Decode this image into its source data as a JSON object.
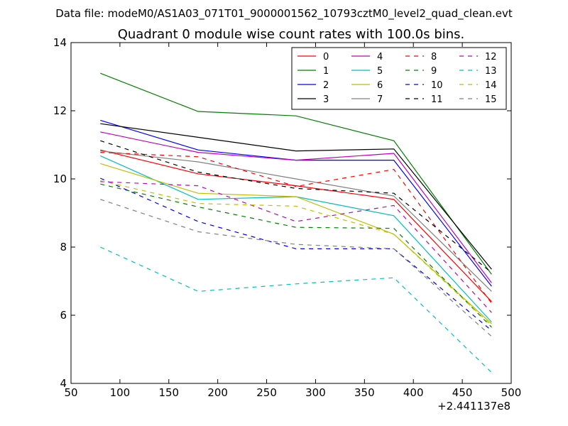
{
  "chart_data": {
    "type": "line",
    "suptitle": "Data file: modeM0/AS1A03_071T01_9000001562_10793cztM0_level2_quad_clean.evt",
    "title": "Quadrant 0 module wise count rates with 100.0s bins.",
    "xlabel": "",
    "ylabel": "",
    "xlim": [
      50,
      500
    ],
    "ylim": [
      4,
      14
    ],
    "x_offset_label": "+2.441137e8",
    "x_ticks": [
      50,
      100,
      150,
      200,
      250,
      300,
      350,
      400,
      450,
      500
    ],
    "y_ticks": [
      4,
      6,
      8,
      10,
      12,
      14
    ],
    "x_tick_labels": [
      "50",
      "100",
      "150",
      "200",
      "250",
      "300",
      "350",
      "400",
      "450",
      "500"
    ],
    "y_tick_labels": [
      "4",
      "6",
      "8",
      "10",
      "12",
      "14"
    ],
    "x": [
      80,
      180,
      280,
      380,
      480
    ],
    "legend_position": "upper-right",
    "series": [
      {
        "name": "0",
        "color": "#ff0000",
        "style": "solid",
        "values": [
          10.85,
          10.15,
          9.8,
          9.4,
          6.4
        ]
      },
      {
        "name": "1",
        "color": "#008000",
        "style": "solid",
        "values": [
          13.1,
          11.98,
          11.85,
          11.12,
          7.2
        ]
      },
      {
        "name": "2",
        "color": "#0000ff",
        "style": "solid",
        "values": [
          11.72,
          10.85,
          10.55,
          10.55,
          6.85
        ]
      },
      {
        "name": "3",
        "color": "#000000",
        "style": "solid",
        "values": [
          11.62,
          11.22,
          10.82,
          10.88,
          7.35
        ]
      },
      {
        "name": "4",
        "color": "#bf00bf",
        "style": "solid",
        "values": [
          11.38,
          10.78,
          10.55,
          10.75,
          6.95
        ]
      },
      {
        "name": "5",
        "color": "#00bfbf",
        "style": "solid",
        "values": [
          10.68,
          9.4,
          9.48,
          8.92,
          5.8
        ]
      },
      {
        "name": "6",
        "color": "#bfbf00",
        "style": "solid",
        "values": [
          10.45,
          9.58,
          9.48,
          8.38,
          5.75
        ]
      },
      {
        "name": "7",
        "color": "#808080",
        "style": "solid",
        "values": [
          10.82,
          10.5,
          10.0,
          9.5,
          6.7
        ]
      },
      {
        "name": "8",
        "color": "#ff0000",
        "style": "dashed",
        "values": [
          10.78,
          10.65,
          9.78,
          10.28,
          6.35
        ]
      },
      {
        "name": "9",
        "color": "#008000",
        "style": "dashed",
        "values": [
          9.85,
          9.18,
          8.58,
          8.55,
          5.65
        ]
      },
      {
        "name": "10",
        "color": "#0000ff",
        "style": "dashed",
        "values": [
          10.02,
          8.75,
          7.95,
          7.95,
          5.55
        ]
      },
      {
        "name": "11",
        "color": "#000000",
        "style": "dashed",
        "values": [
          11.12,
          10.2,
          9.72,
          9.58,
          7.25
        ]
      },
      {
        "name": "12",
        "color": "#bf00bf",
        "style": "dashed",
        "values": [
          9.92,
          9.8,
          8.75,
          9.22,
          6.08
        ]
      },
      {
        "name": "13",
        "color": "#00bfbf",
        "style": "dashed",
        "values": [
          8.0,
          6.7,
          6.92,
          7.1,
          4.32
        ]
      },
      {
        "name": "14",
        "color": "#bfbf00",
        "style": "dashed",
        "values": [
          9.95,
          9.28,
          9.2,
          8.38,
          5.7
        ]
      },
      {
        "name": "15",
        "color": "#808080",
        "style": "dashed",
        "values": [
          9.4,
          8.45,
          8.08,
          7.95,
          5.38
        ]
      }
    ]
  }
}
